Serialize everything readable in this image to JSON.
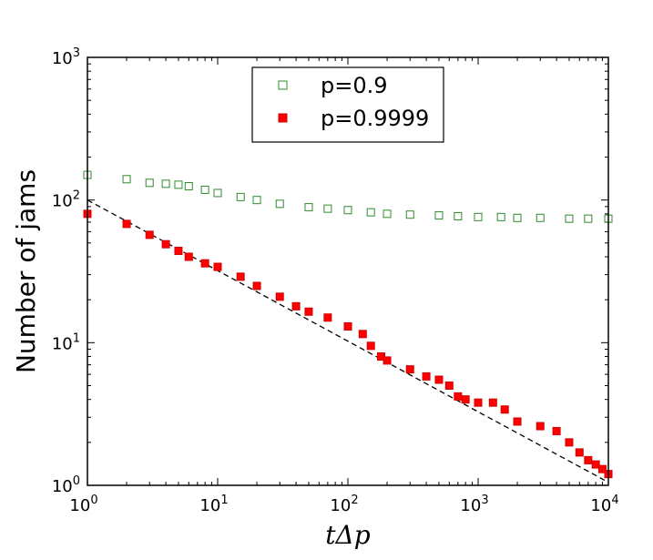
{
  "chart_data": {
    "type": "scatter",
    "xscale": "log",
    "yscale": "log",
    "xlim": [
      1,
      10000
    ],
    "ylim": [
      1,
      1000
    ],
    "xlabel": "tΔp",
    "ylabel": "Number of jams",
    "x_tick_labels": [
      {
        "base": "10",
        "exp": "0"
      },
      {
        "base": "10",
        "exp": "1"
      },
      {
        "base": "10",
        "exp": "2"
      },
      {
        "base": "10",
        "exp": "3"
      },
      {
        "base": "10",
        "exp": "4"
      }
    ],
    "y_tick_labels": [
      {
        "base": "10",
        "exp": "0"
      },
      {
        "base": "10",
        "exp": "1"
      },
      {
        "base": "10",
        "exp": "2"
      },
      {
        "base": "10",
        "exp": "3"
      }
    ],
    "legend_position": "top-center",
    "series": [
      {
        "name": "p=0.9",
        "marker": "open-square",
        "color": "#2e8b2e",
        "points": [
          [
            1,
            150
          ],
          [
            2,
            140
          ],
          [
            3,
            132
          ],
          [
            4,
            130
          ],
          [
            5,
            128
          ],
          [
            6,
            125
          ],
          [
            8,
            118
          ],
          [
            10,
            112
          ],
          [
            15,
            105
          ],
          [
            20,
            100
          ],
          [
            30,
            94
          ],
          [
            50,
            89
          ],
          [
            70,
            87
          ],
          [
            100,
            85
          ],
          [
            150,
            82
          ],
          [
            200,
            80
          ],
          [
            300,
            79
          ],
          [
            500,
            78
          ],
          [
            700,
            77
          ],
          [
            1000,
            76
          ],
          [
            1500,
            76
          ],
          [
            2000,
            75
          ],
          [
            3000,
            75
          ],
          [
            5000,
            74
          ],
          [
            7000,
            74
          ],
          [
            10000,
            74
          ]
        ]
      },
      {
        "name": "p=0.9999",
        "marker": "filled-square",
        "color": "#ff0000",
        "points": [
          [
            1,
            80
          ],
          [
            2,
            68
          ],
          [
            3,
            57
          ],
          [
            4,
            49
          ],
          [
            5,
            44
          ],
          [
            6,
            40
          ],
          [
            8,
            36
          ],
          [
            10,
            34
          ],
          [
            15,
            29
          ],
          [
            20,
            25
          ],
          [
            30,
            21
          ],
          [
            40,
            18
          ],
          [
            50,
            16.5
          ],
          [
            70,
            15
          ],
          [
            100,
            13
          ],
          [
            130,
            11.5
          ],
          [
            150,
            9.5
          ],
          [
            180,
            8
          ],
          [
            200,
            7.5
          ],
          [
            300,
            6.5
          ],
          [
            400,
            5.8
          ],
          [
            500,
            5.5
          ],
          [
            600,
            5
          ],
          [
            700,
            4.2
          ],
          [
            800,
            4
          ],
          [
            1000,
            3.8
          ],
          [
            1300,
            3.8
          ],
          [
            1600,
            3.4
          ],
          [
            2000,
            2.8
          ],
          [
            3000,
            2.6
          ],
          [
            4000,
            2.4
          ],
          [
            5000,
            2.0
          ],
          [
            6000,
            1.7
          ],
          [
            7000,
            1.5
          ],
          [
            8000,
            1.4
          ],
          [
            9000,
            1.3
          ],
          [
            10000,
            1.2
          ]
        ]
      }
    ],
    "reference_line": {
      "style": "dashed",
      "color": "#000000",
      "points": [
        [
          1,
          100
        ],
        [
          10000,
          1.05
        ]
      ]
    }
  }
}
